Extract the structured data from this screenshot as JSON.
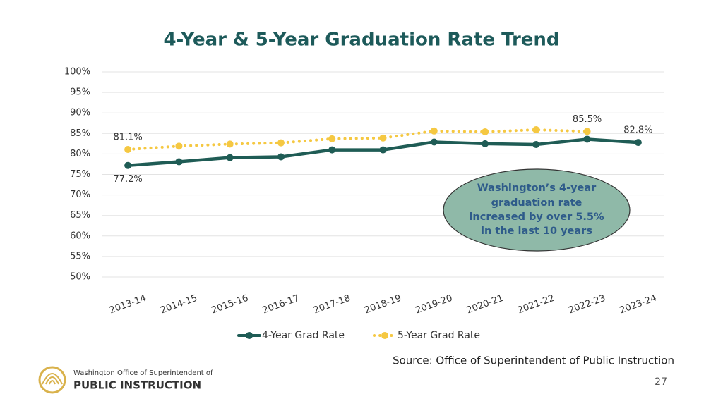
{
  "chart_data": {
    "type": "line",
    "title": "4-Year & 5-Year Graduation Rate Trend",
    "categories": [
      "2013-14",
      "2014-15",
      "2015-16",
      "2016-17",
      "2017-18",
      "2018-19",
      "2019-20",
      "2020-21",
      "2021-22",
      "2022-23",
      "2023-24"
    ],
    "series": [
      {
        "name": "4-Year Grad Rate",
        "color": "#1f5c55",
        "style": "solid",
        "values": [
          77.2,
          78.1,
          79.1,
          79.3,
          81.0,
          81.0,
          82.9,
          82.5,
          82.3,
          83.6,
          82.8
        ],
        "value_labels": [
          "77.2%",
          null,
          null,
          null,
          null,
          null,
          null,
          null,
          null,
          null,
          "82.8%"
        ]
      },
      {
        "name": "5-Year Grad Rate",
        "color": "#f5c842",
        "style": "dotted",
        "values": [
          81.1,
          81.9,
          82.4,
          82.7,
          83.7,
          83.9,
          85.6,
          85.4,
          85.9,
          85.5,
          null
        ],
        "value_labels": [
          "81.1%",
          null,
          null,
          null,
          null,
          null,
          null,
          null,
          null,
          "85.5%",
          null
        ]
      }
    ],
    "ylim": [
      50,
      100
    ],
    "yticks": [
      {
        "value": 50,
        "label": "50%"
      },
      {
        "value": 55,
        "label": "55%"
      },
      {
        "value": 60,
        "label": "60%"
      },
      {
        "value": 65,
        "label": "65%"
      },
      {
        "value": 70,
        "label": "70%"
      },
      {
        "value": 75,
        "label": "75%"
      },
      {
        "value": 80,
        "label": "80%"
      },
      {
        "value": 85,
        "label": "85%"
      },
      {
        "value": 90,
        "label": "90%"
      },
      {
        "value": 95,
        "label": "95%"
      },
      {
        "value": 100,
        "label": "100%"
      }
    ],
    "grid": true,
    "legend": "bottom",
    "annotation": [
      "Washington’s 4-year",
      "graduation rate",
      "increased by over 5.5%",
      "in the last 10 years"
    ]
  },
  "source": "Source: Office of Superintendent of Public Instruction",
  "page_number": "27",
  "logo": {
    "line1": "Washington Office of Superintendent of",
    "line2": "PUBLIC INSTRUCTION"
  }
}
